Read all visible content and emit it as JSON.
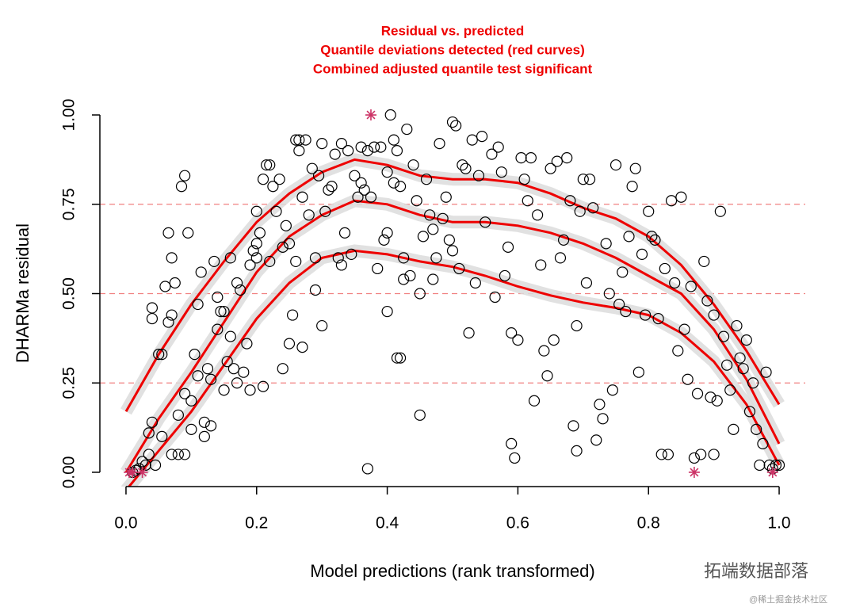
{
  "chart_data": {
    "type": "scatter",
    "title": "Residual vs. predicted",
    "subtitle": [
      "Quantile deviations detected (red curves)",
      "Combined adjusted quantile test significant"
    ],
    "xlabel": "Model predictions (rank transformed)",
    "ylabel": "DHARMa residual",
    "xlim": [
      -0.04,
      1.04
    ],
    "ylim": [
      -0.04,
      1.04
    ],
    "xticks": [
      {
        "value": 0,
        "label": "0.0"
      },
      {
        "value": 0.2,
        "label": "0.2"
      },
      {
        "value": 0.4,
        "label": "0.4"
      },
      {
        "value": 0.6,
        "label": "0.6"
      },
      {
        "value": 0.8,
        "label": "0.8"
      },
      {
        "value": 1,
        "label": "1.0"
      }
    ],
    "yticks": [
      {
        "value": 0,
        "label": "0.00"
      },
      {
        "value": 0.25,
        "label": "0.25"
      },
      {
        "value": 0.5,
        "label": "0.50"
      },
      {
        "value": 0.75,
        "label": "0.75"
      },
      {
        "value": 1,
        "label": "1.00"
      }
    ],
    "color": "#000000",
    "x": [
      0.01,
      0.015,
      0.02,
      0.025,
      0.03,
      0.035,
      0.035,
      0.04,
      0.045,
      0.05,
      0.055,
      0.055,
      0.04,
      0.04,
      0.06,
      0.065,
      0.065,
      0.07,
      0.07,
      0.075,
      0.07,
      0.08,
      0.08,
      0.085,
      0.09,
      0.09,
      0.095,
      0.09,
      0.1,
      0.1,
      0.105,
      0.11,
      0.11,
      0.115,
      0.12,
      0.12,
      0.125,
      0.13,
      0.13,
      0.135,
      0.14,
      0.14,
      0.145,
      0.15,
      0.15,
      0.155,
      0.16,
      0.16,
      0.165,
      0.17,
      0.17,
      0.175,
      0.18,
      0.185,
      0.19,
      0.19,
      0.195,
      0.2,
      0.2,
      0.2,
      0.205,
      0.21,
      0.215,
      0.22,
      0.22,
      0.21,
      0.225,
      0.23,
      0.235,
      0.24,
      0.24,
      0.245,
      0.25,
      0.25,
      0.255,
      0.26,
      0.26,
      0.265,
      0.265,
      0.27,
      0.27,
      0.275,
      0.28,
      0.285,
      0.29,
      0.29,
      0.295,
      0.3,
      0.3,
      0.305,
      0.31,
      0.315,
      0.32,
      0.325,
      0.33,
      0.33,
      0.335,
      0.34,
      0.345,
      0.35,
      0.355,
      0.36,
      0.36,
      0.365,
      0.37,
      0.37,
      0.375,
      0.38,
      0.385,
      0.39,
      0.395,
      0.4,
      0.4,
      0.4,
      0.405,
      0.41,
      0.41,
      0.415,
      0.415,
      0.42,
      0.42,
      0.425,
      0.425,
      0.43,
      0.435,
      0.44,
      0.445,
      0.45,
      0.45,
      0.455,
      0.46,
      0.465,
      0.47,
      0.47,
      0.475,
      0.48,
      0.485,
      0.49,
      0.495,
      0.5,
      0.5,
      0.505,
      0.51,
      0.515,
      0.52,
      0.525,
      0.53,
      0.535,
      0.54,
      0.545,
      0.55,
      0.56,
      0.565,
      0.57,
      0.575,
      0.58,
      0.585,
      0.59,
      0.59,
      0.595,
      0.6,
      0.605,
      0.61,
      0.615,
      0.62,
      0.625,
      0.63,
      0.635,
      0.64,
      0.645,
      0.65,
      0.655,
      0.66,
      0.665,
      0.67,
      0.675,
      0.68,
      0.685,
      0.69,
      0.69,
      0.695,
      0.7,
      0.705,
      0.71,
      0.715,
      0.72,
      0.725,
      0.73,
      0.735,
      0.74,
      0.745,
      0.75,
      0.755,
      0.76,
      0.765,
      0.77,
      0.775,
      0.78,
      0.785,
      0.79,
      0.795,
      0.8,
      0.805,
      0.81,
      0.815,
      0.82,
      0.825,
      0.83,
      0.835,
      0.84,
      0.845,
      0.85,
      0.855,
      0.86,
      0.865,
      0.87,
      0.875,
      0.88,
      0.885,
      0.89,
      0.895,
      0.9,
      0.9,
      0.905,
      0.91,
      0.915,
      0.92,
      0.925,
      0.93,
      0.935,
      0.94,
      0.945,
      0.95,
      0.955,
      0.96,
      0.965,
      0.97,
      0.975,
      0.98,
      0.985,
      0.99,
      0.995,
      1.0
    ],
    "values": [
      0.0,
      0.005,
      0.01,
      0.03,
      0.02,
      0.05,
      0.11,
      0.14,
      0.02,
      0.33,
      0.33,
      0.1,
      0.43,
      0.46,
      0.52,
      0.42,
      0.67,
      0.44,
      0.6,
      0.53,
      0.05,
      0.16,
      0.05,
      0.8,
      0.83,
      0.22,
      0.67,
      0.05,
      0.12,
      0.2,
      0.33,
      0.27,
      0.47,
      0.56,
      0.1,
      0.14,
      0.29,
      0.13,
      0.26,
      0.59,
      0.49,
      0.4,
      0.45,
      0.45,
      0.23,
      0.31,
      0.38,
      0.6,
      0.29,
      0.25,
      0.53,
      0.51,
      0.28,
      0.36,
      0.23,
      0.58,
      0.62,
      0.64,
      0.73,
      0.6,
      0.67,
      0.82,
      0.86,
      0.86,
      0.59,
      0.24,
      0.8,
      0.73,
      0.82,
      0.63,
      0.29,
      0.69,
      0.36,
      0.64,
      0.44,
      0.59,
      0.93,
      0.93,
      0.9,
      0.35,
      0.77,
      0.93,
      0.72,
      0.85,
      0.6,
      0.51,
      0.83,
      0.41,
      0.92,
      0.73,
      0.79,
      0.8,
      0.89,
      0.6,
      0.58,
      0.92,
      0.67,
      0.9,
      0.61,
      0.83,
      0.77,
      0.91,
      0.81,
      0.79,
      0.9,
      0.01,
      0.77,
      0.91,
      0.57,
      0.91,
      0.65,
      0.84,
      0.67,
      0.45,
      1.0,
      0.93,
      0.81,
      0.9,
      0.32,
      0.32,
      0.8,
      0.6,
      0.54,
      0.96,
      0.55,
      0.86,
      0.76,
      0.5,
      0.16,
      0.66,
      0.82,
      0.72,
      0.68,
      0.54,
      0.6,
      0.92,
      0.71,
      0.77,
      0.65,
      0.98,
      0.62,
      0.97,
      0.57,
      0.86,
      0.85,
      0.39,
      0.93,
      0.53,
      0.83,
      0.94,
      0.7,
      0.89,
      0.49,
      0.91,
      0.84,
      0.55,
      0.63,
      0.39,
      0.08,
      0.04,
      0.37,
      0.88,
      0.82,
      0.76,
      0.88,
      0.2,
      0.72,
      0.58,
      0.34,
      0.27,
      0.85,
      0.37,
      0.87,
      0.6,
      0.65,
      0.88,
      0.76,
      0.13,
      0.41,
      0.06,
      0.73,
      0.82,
      0.53,
      0.82,
      0.74,
      0.09,
      0.19,
      0.15,
      0.64,
      0.5,
      0.23,
      0.86,
      0.47,
      0.56,
      0.45,
      0.66,
      0.8,
      0.85,
      0.28,
      0.61,
      0.44,
      0.73,
      0.66,
      0.65,
      0.43,
      0.05,
      0.57,
      0.05,
      0.76,
      0.53,
      0.34,
      0.77,
      0.4,
      0.26,
      0.52,
      0.04,
      0.22,
      0.05,
      0.59,
      0.48,
      0.21,
      0.44,
      0.05,
      0.2,
      0.73,
      0.38,
      0.3,
      0.23,
      0.12,
      0.41,
      0.32,
      0.29,
      0.37,
      0.17,
      0.25,
      0.12,
      0.02,
      0.08,
      0.28,
      0.02,
      0.01,
      0.02,
      0.02
    ],
    "outliers": {
      "color": "#cc3366",
      "x": [
        0.005,
        0.01,
        0.025,
        0.375,
        0.87,
        0.99
      ],
      "values": [
        0,
        0,
        0,
        1,
        0,
        0
      ]
    },
    "reference_lines": {
      "color": "#f08080",
      "values": [
        0.25,
        0.5,
        0.75
      ]
    },
    "curves": {
      "color": "#ee0000",
      "band_color": "#dcdcdc",
      "x": [
        0,
        0.05,
        0.1,
        0.15,
        0.2,
        0.25,
        0.3,
        0.35,
        0.4,
        0.45,
        0.5,
        0.55,
        0.6,
        0.65,
        0.7,
        0.75,
        0.8,
        0.85,
        0.9,
        0.95,
        1.0
      ],
      "series": [
        {
          "values": [
            0.17,
            0.33,
            0.47,
            0.59,
            0.7,
            0.78,
            0.84,
            0.875,
            0.86,
            0.83,
            0.82,
            0.82,
            0.81,
            0.78,
            0.74,
            0.71,
            0.66,
            0.58,
            0.47,
            0.34,
            0.19
          ]
        },
        {
          "values": [
            0.0,
            0.15,
            0.28,
            0.42,
            0.56,
            0.66,
            0.72,
            0.76,
            0.75,
            0.72,
            0.7,
            0.7,
            0.69,
            0.67,
            0.64,
            0.6,
            0.55,
            0.5,
            0.4,
            0.26,
            0.08
          ]
        },
        {
          "values": [
            -0.05,
            0.06,
            0.17,
            0.3,
            0.43,
            0.53,
            0.6,
            0.62,
            0.61,
            0.59,
            0.575,
            0.55,
            0.52,
            0.495,
            0.475,
            0.46,
            0.44,
            0.39,
            0.31,
            0.19,
            0.02
          ]
        }
      ]
    },
    "watermark": [
      "拓端数据部落",
      "@稀土掘金技术社区"
    ]
  }
}
